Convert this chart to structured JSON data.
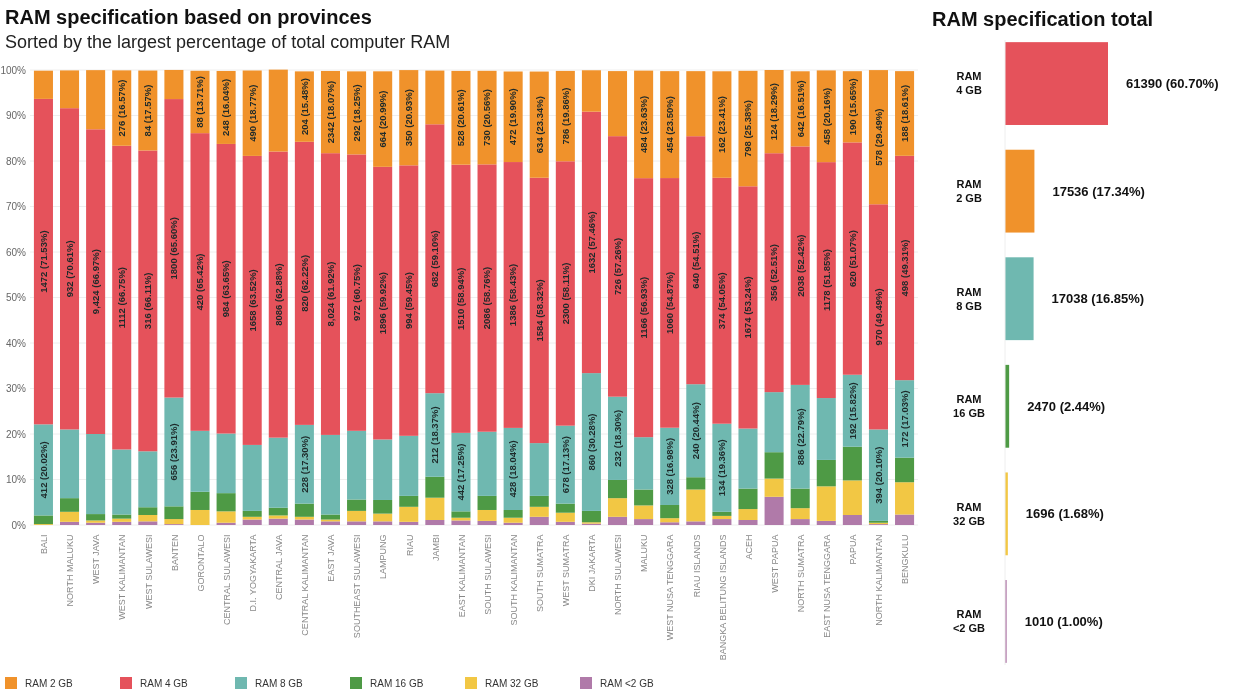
{
  "chart_data": [
    {
      "type": "bar",
      "title": "RAM specification based on provinces",
      "subtitle": "Sorted by the largest percentage of total computer RAM",
      "stacked": true,
      "grid": "y",
      "legend": "bottom",
      "categories": [
        "BALI",
        "NORTH MALUKU",
        "WEST JAVA",
        "WEST KALIMANTAN",
        "WEST SULAWESI",
        "BANTEN",
        "GORONTALO",
        "CENTRAL SULAWESI",
        "D.I. YOGYAKARTA",
        "CENTRAL JAVA",
        "CENTRAL KALIMANTAN",
        "EAST JAVA",
        "SOUTHEAST SULAWESI",
        "LAMPUNG",
        "RIAU",
        "JAMBI",
        "EAST KALIMANTAN",
        "SOUTH SULAWESI",
        "SOUTH KALIMANTAN",
        "SOUTH SUMATRA",
        "WEST SUMATRA",
        "DKI JAKARTA",
        "NORTH SULAWESI",
        "MALUKU",
        "WEST NUSA TENGGARA",
        "RIAU ISLANDS",
        "BANGKA BELITUNG ISLANDS",
        "ACEH",
        "WEST PAPUA",
        "NORTH SUMATRA",
        "EAST NUSA TENGGARA",
        "PAPUA",
        "NORTH KALIMANTAN",
        "BENGKULU"
      ],
      "ylim": [
        0,
        100
      ],
      "yticks": [
        {
          "value": 0,
          "label": "0%"
        },
        {
          "value": 10,
          "label": "10%"
        },
        {
          "value": 20,
          "label": "20%"
        },
        {
          "value": 30,
          "label": "30%"
        },
        {
          "value": 40,
          "label": "40%"
        },
        {
          "value": 50,
          "label": "50%"
        },
        {
          "value": 60,
          "label": "60%"
        },
        {
          "value": 70,
          "label": "70%"
        },
        {
          "value": 80,
          "label": "80%"
        },
        {
          "value": 90,
          "label": "90%"
        },
        {
          "value": 100,
          "label": "100%"
        }
      ],
      "series": [
        {
          "name": "RAM <2 GB",
          "color": "#b07aa9",
          "values": [
            null,
            0.7,
            0.5,
            0.7,
            0.8,
            0.2,
            null,
            0.5,
            1.2,
            1.4,
            1.2,
            0.8,
            0.8,
            0.8,
            0.7,
            1.1,
            1.0,
            0.9,
            0.5,
            1.8,
            0.7,
            0.3,
            1.8,
            1.3,
            0.6,
            0.8,
            1.3,
            1.1,
            6.2,
            1.3,
            0.9,
            2.2,
            0.2,
            2.3
          ]
        },
        {
          "name": "RAM 32 GB",
          "color": "#f2c744",
          "values": [
            0.2,
            2.2,
            0.5,
            0.7,
            1.4,
            1.1,
            3.3,
            2.5,
            0.6,
            0.7,
            0.6,
            0.4,
            2.3,
            1.7,
            3.3,
            4.9,
            0.6,
            2.4,
            1.1,
            2.2,
            2.0,
            0.3,
            4.1,
            3.0,
            0.9,
            7.0,
            0.7,
            2.4,
            4.0,
            2.4,
            7.6,
            7.6,
            0.3,
            7.1
          ]
        },
        {
          "name": "RAM 16 GB",
          "color": "#4e9a45",
          "values": [
            1.9,
            3.0,
            1.4,
            0.9,
            1.7,
            2.8,
            4.0,
            4.0,
            1.3,
            1.7,
            2.9,
            1.1,
            2.5,
            3.0,
            2.4,
            4.6,
            1.4,
            3.1,
            1.7,
            2.4,
            2.0,
            2.5,
            4.0,
            3.5,
            2.9,
            2.7,
            0.9,
            4.5,
            5.8,
            4.3,
            5.8,
            7.4,
            0.4,
            5.4
          ]
        },
        {
          "name": "RAM 8 GB",
          "color": "#6fb8b0",
          "values": [
            20.02,
            15.1,
            17.6,
            14.3,
            12.3,
            23.91,
            13.4,
            13.1,
            14.5,
            15.4,
            17.3,
            17.5,
            15.1,
            13.3,
            13.2,
            18.37,
            17.25,
            14.1,
            18.04,
            11.6,
            17.13,
            30.28,
            18.3,
            11.5,
            16.98,
            20.44,
            19.36,
            13.2,
            13.2,
            22.79,
            13.6,
            15.82,
            20.1,
            17.03
          ],
          "value_labels": [
            "412 (20.02%)",
            null,
            null,
            null,
            null,
            "656 (23.91%)",
            null,
            null,
            null,
            null,
            "228 (17.30%)",
            null,
            null,
            null,
            null,
            "212 (18.37%)",
            "442 (17.25%)",
            null,
            "428 (18.04%)",
            null,
            "678 (17.13%)",
            "860 (30.28%)",
            "232 (18.30%)",
            null,
            "328 (16.98%)",
            "240 (20.44%)",
            "134 (19.36%)",
            null,
            null,
            "886 (22.79%)",
            null,
            "192 (15.82%)",
            "394 (20.10%)",
            "172 (17.03%)"
          ]
        },
        {
          "name": "RAM 4 GB",
          "color": "#e5525b",
          "values": [
            71.53,
            70.61,
            66.97,
            66.75,
            66.11,
            65.6,
            65.42,
            63.65,
            63.52,
            62.88,
            62.22,
            61.92,
            60.75,
            59.92,
            59.45,
            59.1,
            58.94,
            58.76,
            58.43,
            58.32,
            58.11,
            57.46,
            57.26,
            56.93,
            54.87,
            54.51,
            54.05,
            53.24,
            52.51,
            52.42,
            51.85,
            51.07,
            49.49,
            49.31
          ],
          "value_labels": [
            "1472 (71.53%)",
            "932 (70.61%)",
            "9,424 (66.97%)",
            "1112 (66.75%)",
            "316 (66.11%)",
            "1800 (65.60%)",
            "420 (65.42%)",
            "984 (63.65%)",
            "1658 (63.52%)",
            "8086 (62.88%)",
            "820 (62.22%)",
            "8,024 (61.92%)",
            "972 (60.75%)",
            "1896 (59.92%)",
            "994 (59.45%)",
            "682 (59.10%)",
            "1510 (58.94%)",
            "2086 (58.76%)",
            "1386 (58.43%)",
            "1584 (58.32%)",
            "2300 (58.11%)",
            "1632 (57.46%)",
            "726 (57.26%)",
            "1166 (56.93%)",
            "1060 (54.87%)",
            "640 (54.51%)",
            "374 (54.05%)",
            "1674 (53.24%)",
            "356 (52.51%)",
            "2038 (52.42%)",
            "1178 (51.85%)",
            "620 (51.07%)",
            "970 (49.49%)",
            "498 (49.31%)"
          ]
        },
        {
          "name": "RAM 2 GB",
          "color": "#f0922b",
          "values": [
            6.2,
            8.3,
            13.0,
            16.57,
            17.57,
            6.4,
            13.71,
            16.04,
            18.77,
            18.0,
            15.48,
            18.07,
            18.25,
            20.99,
            20.93,
            11.8,
            20.61,
            20.56,
            19.9,
            23.34,
            19.86,
            9.1,
            14.3,
            23.63,
            23.5,
            14.3,
            23.41,
            25.38,
            18.29,
            16.51,
            20.16,
            15.65,
            29.49,
            18.61
          ],
          "value_labels": [
            null,
            null,
            null,
            "276 (16.57%)",
            "84 (17.57%)",
            null,
            "88 (13.71%)",
            "248 (16.04%)",
            "490 (18.77%)",
            null,
            "204 (15.48%)",
            "2342 (18.07%)",
            "292 (18.25%)",
            "664 (20.99%)",
            "350 (20.93%)",
            null,
            "528 (20.61%)",
            "730 (20.56%)",
            "472 (19.90%)",
            "634 (23.34%)",
            "786 (19.86%)",
            null,
            null,
            "484 (23.63%)",
            "454 (23.50%)",
            null,
            "162 (23.41%)",
            "798 (25.38%)",
            "124 (18.29%)",
            "642 (16.51%)",
            "458 (20.16%)",
            "190 (15.65%)",
            "578 (29.49%)",
            "188 (18.61%)"
          ]
        }
      ]
    },
    {
      "type": "bar",
      "title": "RAM specification total",
      "orientation": "horizontal",
      "categories": [
        "RAM 4 GB",
        "RAM 2 GB",
        "RAM 8 GB",
        "RAM 16 GB",
        "RAM 32 GB",
        "RAM <2 GB"
      ],
      "values": [
        61390,
        17536,
        17038,
        2470,
        1696,
        1010
      ],
      "colors": [
        "#e5525b",
        "#f0922b",
        "#6fb8b0",
        "#4e9a45",
        "#f2c744",
        "#b07aa9"
      ],
      "value_labels": [
        "61390 (60.70%)",
        "17536 (17.34%)",
        "17038 (16.85%)",
        "2470 (2.44%)",
        "1696 (1.68%)",
        "1010 (1.00%)"
      ]
    }
  ]
}
